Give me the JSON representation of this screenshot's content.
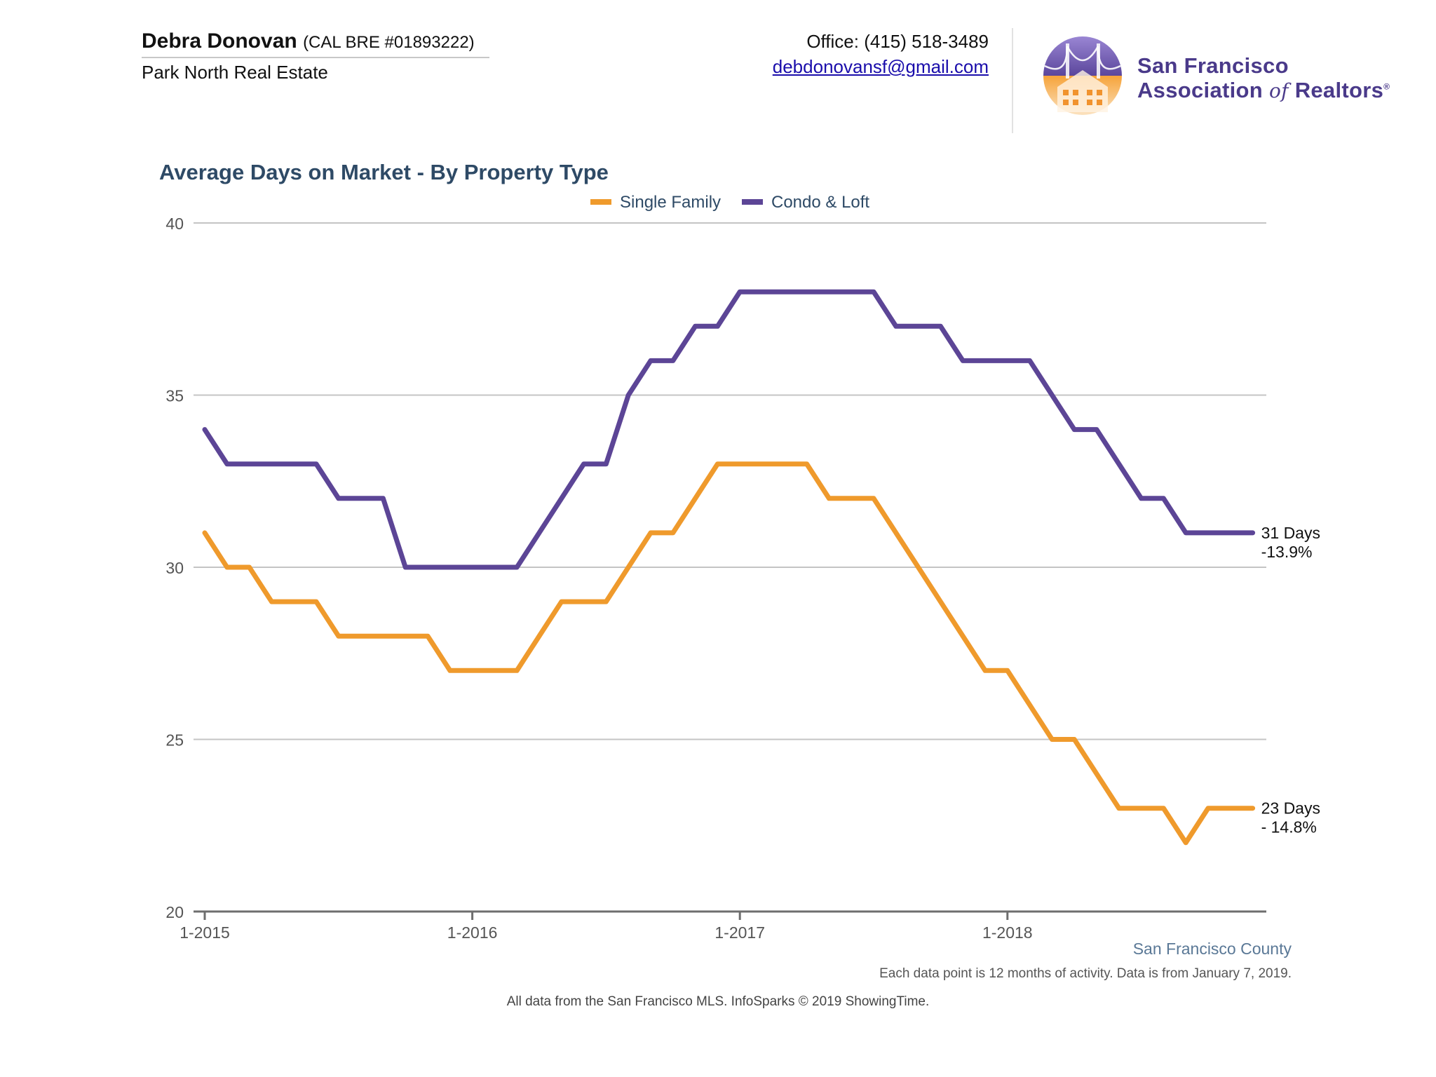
{
  "header": {
    "agent_name": "Debra Donovan",
    "agent_license": "(CAL BRE #01893222)",
    "agent_company": "Park North Real Estate",
    "office_phone": "Office: (415) 518-3489",
    "email": "debdonovansf@gmail.com",
    "logo_line1": "San Francisco",
    "logo_line2_a": "Association",
    "logo_line2_of": "of",
    "logo_line2_b": "Realtors",
    "logo_mark": "®",
    "logo_icon": "golden-gate-house-emblem-icon"
  },
  "footer": {
    "region": "San Francisco County",
    "note": "Each data point is 12 months of activity. Data is from January 7, 2019.",
    "source": "All data from the San Francisco MLS. InfoSparks © 2019 ShowingTime."
  },
  "chart_data": {
    "type": "line",
    "title": "Average Days on Market - By Property Type",
    "xlabel": "",
    "ylabel": "",
    "ylim": [
      20,
      40
    ],
    "yticks": [
      20,
      25,
      30,
      35,
      40
    ],
    "xticks": [
      {
        "index": 0,
        "label": "1-2015"
      },
      {
        "index": 12,
        "label": "1-2016"
      },
      {
        "index": 24,
        "label": "1-2017"
      },
      {
        "index": 36,
        "label": "1-2018"
      }
    ],
    "grid": true,
    "legend_position": "top-center",
    "x": [
      "1-2015",
      "2-2015",
      "3-2015",
      "4-2015",
      "5-2015",
      "6-2015",
      "7-2015",
      "8-2015",
      "9-2015",
      "10-2015",
      "11-2015",
      "12-2015",
      "1-2016",
      "2-2016",
      "3-2016",
      "4-2016",
      "5-2016",
      "6-2016",
      "7-2016",
      "8-2016",
      "9-2016",
      "10-2016",
      "11-2016",
      "12-2016",
      "1-2017",
      "2-2017",
      "3-2017",
      "4-2017",
      "5-2017",
      "6-2017",
      "7-2017",
      "8-2017",
      "9-2017",
      "10-2017",
      "11-2017",
      "12-2017",
      "1-2018",
      "2-2018",
      "3-2018",
      "4-2018",
      "5-2018",
      "6-2018",
      "7-2018",
      "8-2018",
      "9-2018",
      "10-2018",
      "11-2018",
      "12-2018"
    ],
    "series": [
      {
        "name": "Single Family",
        "color": "#ef9a2c",
        "values": [
          31,
          30,
          30,
          29,
          29,
          29,
          28,
          28,
          28,
          28,
          28,
          27,
          27,
          27,
          27,
          28,
          29,
          29,
          29,
          30,
          31,
          31,
          32,
          33,
          33,
          33,
          33,
          33,
          32,
          32,
          32,
          31,
          30,
          29,
          28,
          27,
          27,
          26,
          25,
          25,
          24,
          23,
          23,
          23,
          22,
          23,
          23,
          23
        ],
        "end_label": [
          "23 Days",
          "- 14.8%"
        ]
      },
      {
        "name": "Condo & Loft",
        "color": "#5c4596",
        "values": [
          34,
          33,
          33,
          33,
          33,
          33,
          32,
          32,
          32,
          30,
          30,
          30,
          30,
          30,
          30,
          31,
          32,
          33,
          33,
          35,
          36,
          36,
          37,
          37,
          38,
          38,
          38,
          38,
          38,
          38,
          38,
          37,
          37,
          37,
          36,
          36,
          36,
          36,
          35,
          34,
          34,
          33,
          32,
          32,
          31,
          31,
          31,
          31
        ],
        "end_label": [
          "31 Days",
          "-13.9%"
        ]
      }
    ]
  }
}
